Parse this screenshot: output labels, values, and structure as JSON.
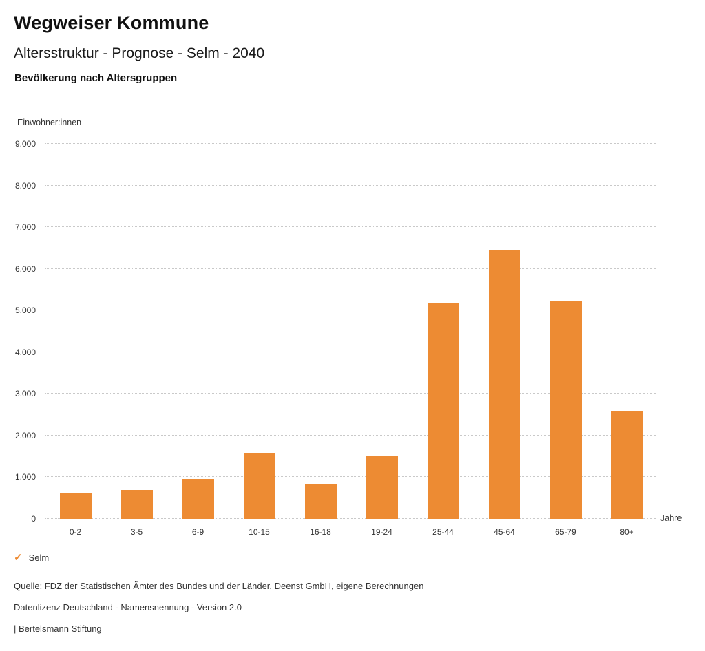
{
  "header": {
    "title": "Wegweiser Kommune",
    "subtitle": "Altersstruktur - Prognose - Selm - 2040"
  },
  "chart_data": {
    "type": "bar",
    "title": "Bevölkerung nach Altersgruppen",
    "xlabel": "Jahre",
    "ylabel": "Einwohner:innen",
    "categories": [
      "0-2",
      "3-5",
      "6-9",
      "10-15",
      "16-18",
      "19-24",
      "25-44",
      "45-64",
      "65-79",
      "80+"
    ],
    "values": [
      630,
      690,
      960,
      1570,
      830,
      1500,
      5180,
      6440,
      5220,
      2590
    ],
    "series_name": "Selm",
    "ylim": [
      0,
      9000
    ],
    "yticks": [
      {
        "value": 0,
        "label": "0"
      },
      {
        "value": 1000,
        "label": "1.000"
      },
      {
        "value": 2000,
        "label": "2.000"
      },
      {
        "value": 3000,
        "label": "3.000"
      },
      {
        "value": 4000,
        "label": "4.000"
      },
      {
        "value": 5000,
        "label": "5.000"
      },
      {
        "value": 6000,
        "label": "6.000"
      },
      {
        "value": 7000,
        "label": "7.000"
      },
      {
        "value": 8000,
        "label": "8.000"
      },
      {
        "value": 9000,
        "label": "9.000"
      }
    ],
    "grid": true,
    "legend_position": "bottom-left",
    "bar_color": "#ED8B33",
    "grid_color": "#C9C9C9"
  },
  "legend": {
    "check_icon": "✓",
    "label": "Selm"
  },
  "footer": {
    "source": "Quelle: FDZ der Statistischen Ämter des Bundes und der Länder, Deenst GmbH, eigene Berechnungen",
    "license": "Datenlizenz Deutschland - Namensnennung - Version 2.0",
    "attribution": "| Bertelsmann Stiftung"
  }
}
